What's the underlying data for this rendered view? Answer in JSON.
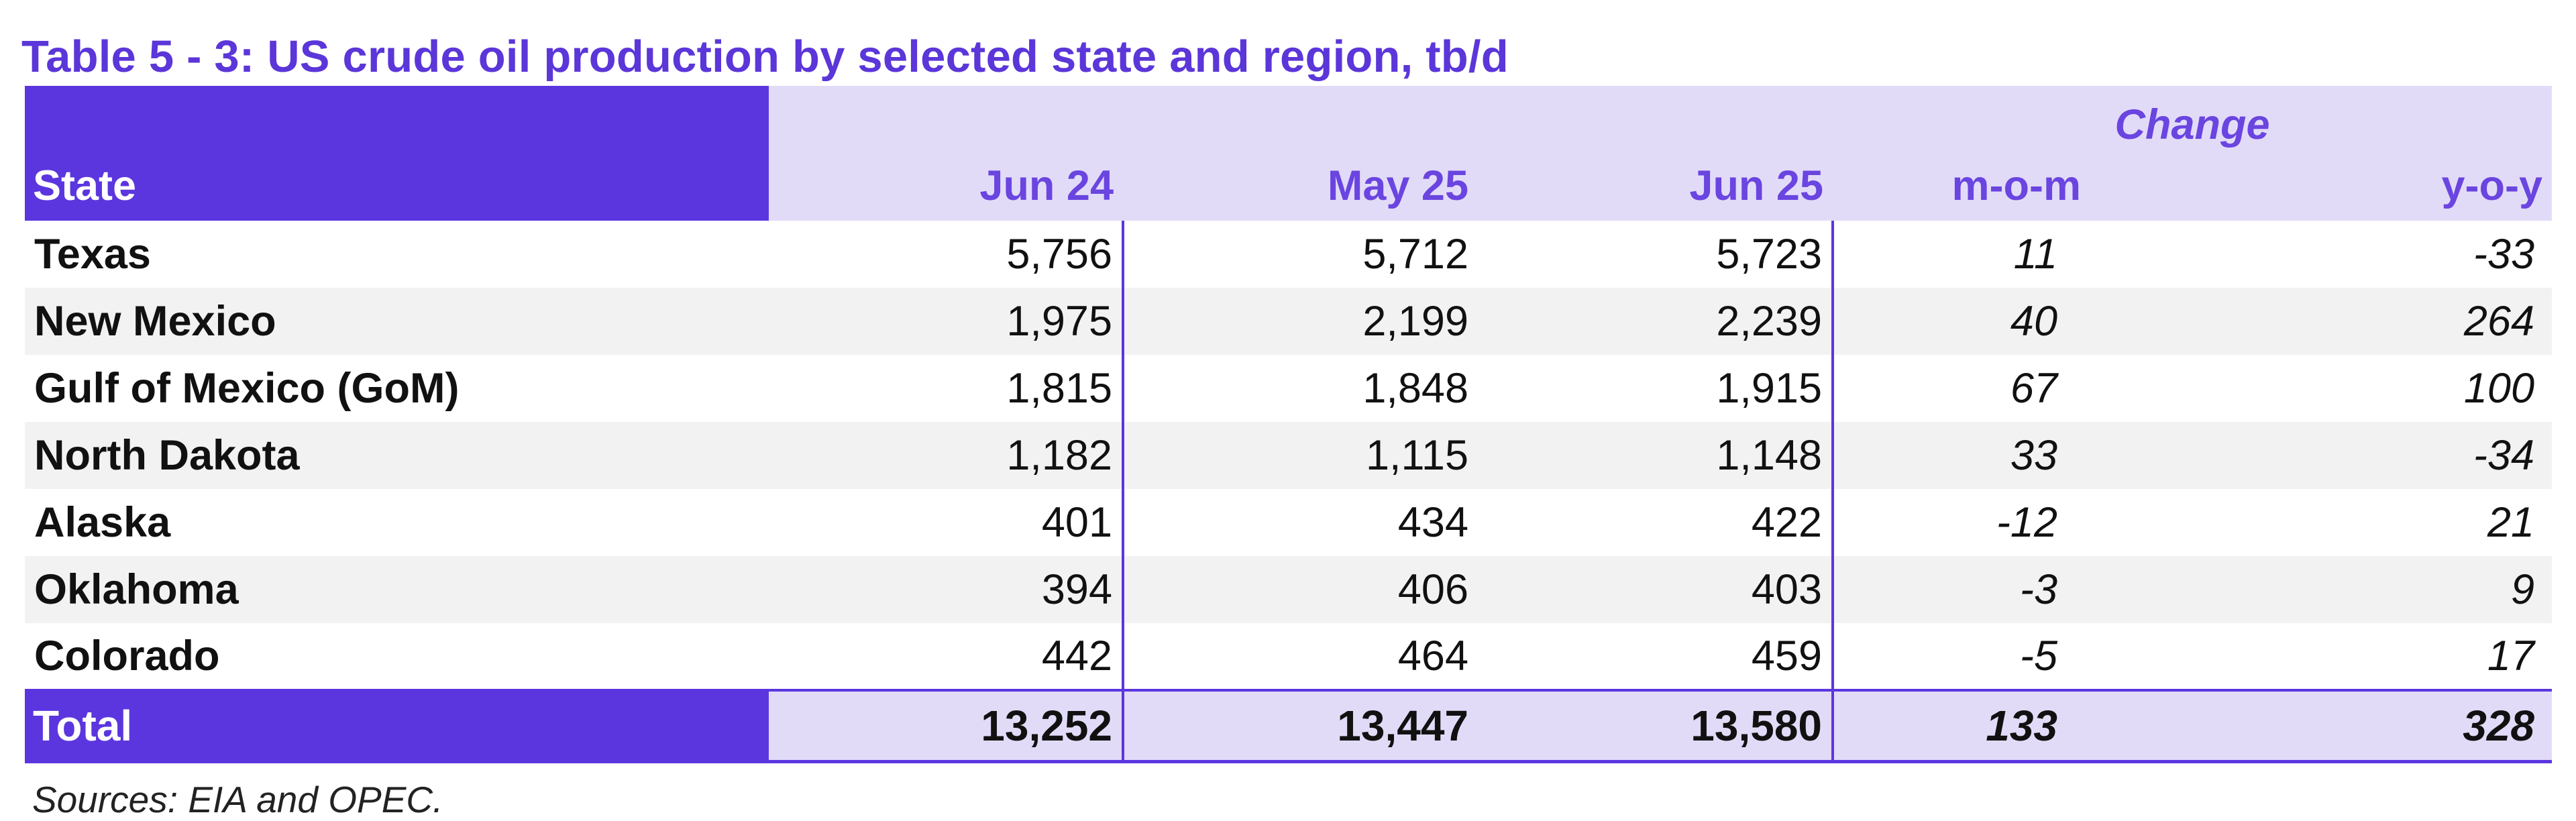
{
  "title": "Table 5 - 3: US crude oil production by selected state and region, tb/d",
  "table": {
    "change_label": "Change",
    "columns": {
      "state": "State",
      "jun24": "Jun 24",
      "may25": "May 25",
      "jun25": "Jun 25",
      "mom": "m-o-m",
      "yoy": "y-o-y"
    },
    "rows": [
      {
        "state": "Texas",
        "jun24": "5,756",
        "may25": "5,712",
        "jun25": "5,723",
        "mom": "11",
        "yoy": "-33"
      },
      {
        "state": "New Mexico",
        "jun24": "1,975",
        "may25": "2,199",
        "jun25": "2,239",
        "mom": "40",
        "yoy": "264"
      },
      {
        "state": "Gulf of Mexico (GoM)",
        "jun24": "1,815",
        "may25": "1,848",
        "jun25": "1,915",
        "mom": "67",
        "yoy": "100"
      },
      {
        "state": "North Dakota",
        "jun24": "1,182",
        "may25": "1,115",
        "jun25": "1,148",
        "mom": "33",
        "yoy": "-34"
      },
      {
        "state": "Alaska",
        "jun24": "401",
        "may25": "434",
        "jun25": "422",
        "mom": "-12",
        "yoy": "21"
      },
      {
        "state": "Oklahoma",
        "jun24": "394",
        "may25": "406",
        "jun25": "403",
        "mom": "-3",
        "yoy": "9"
      },
      {
        "state": "Colorado",
        "jun24": "442",
        "may25": "464",
        "jun25": "459",
        "mom": "-5",
        "yoy": "17"
      }
    ],
    "total": {
      "state": "Total",
      "jun24": "13,252",
      "may25": "13,447",
      "jun25": "13,580",
      "mom": "133",
      "yoy": "328"
    }
  },
  "source": "Sources: EIA and OPEC.",
  "colors": {
    "accent": "#5b36df",
    "header_band": "#e2dbf8",
    "alt_row": "#f2f2f2",
    "header_text": "#6a45e0"
  }
}
